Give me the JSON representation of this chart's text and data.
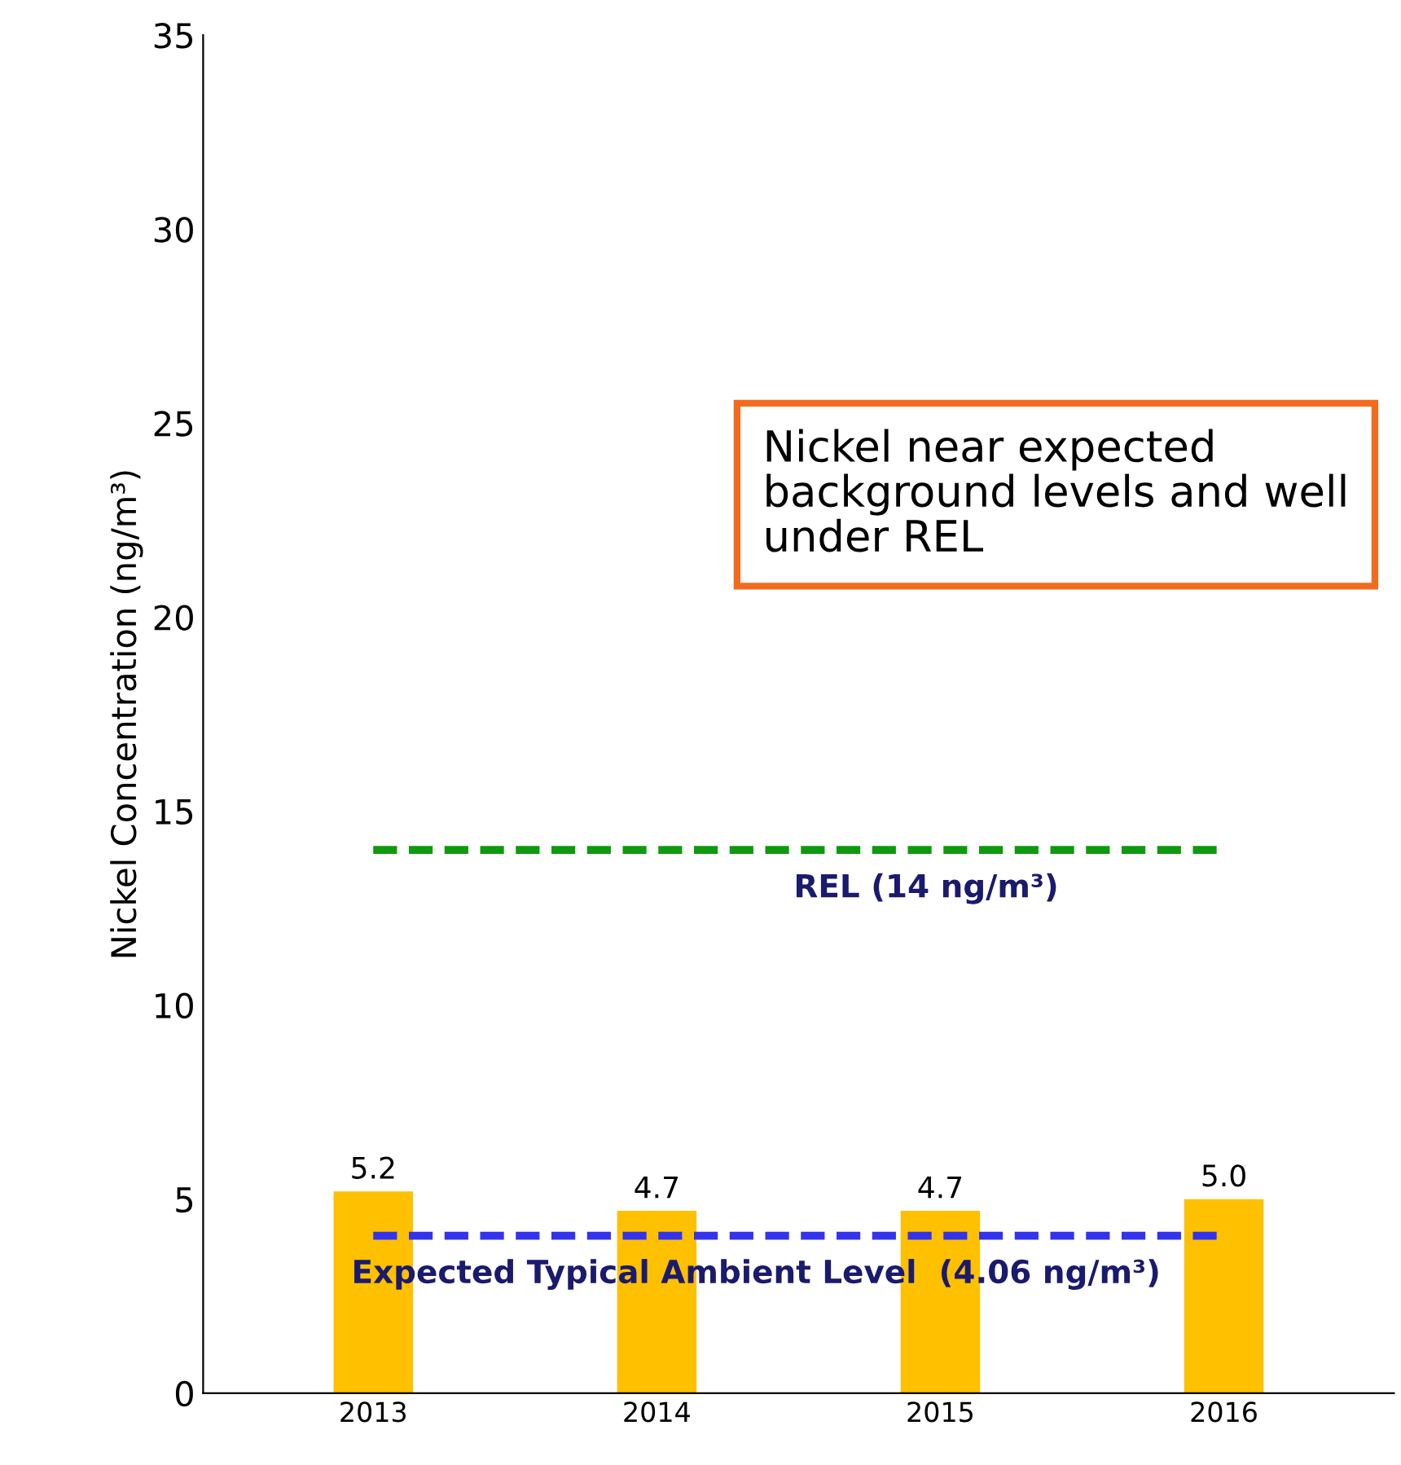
{
  "chart_data": {
    "type": "bar",
    "ylabel": "Nickel Concentration (ng/m³)",
    "categories": [
      "2013",
      "2014",
      "2015",
      "2016"
    ],
    "values": [
      5.2,
      4.7,
      4.7,
      5.0
    ],
    "color": "#ffc000",
    "value_labels": [
      "5.2",
      "4.7",
      "4.7",
      "5.0"
    ],
    "ylim": [
      0,
      35
    ],
    "yticks": [
      0,
      5,
      10,
      15,
      20,
      25,
      30,
      35
    ],
    "grid": false,
    "legend": false,
    "ref_lines": [
      {
        "axis": "y",
        "value": 14,
        "label": "REL (14 ng/m³)",
        "color": "#0e9a0e",
        "line_style": "dashed"
      },
      {
        "axis": "y",
        "value": 4.06,
        "label": "Expected Typical Ambient Level  (4.06 ng/m³)",
        "color": "#3333ee",
        "line_style": "dashed"
      }
    ],
    "annotations": [
      "Nickel near expected background levels and well under REL"
    ]
  }
}
